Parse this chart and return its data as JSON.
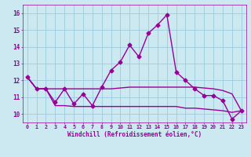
{
  "background_color": "#cce8f0",
  "grid_color": "#99ccdd",
  "line_color": "#990099",
  "xlim": [
    -0.5,
    23.5
  ],
  "ylim": [
    9.5,
    16.5
  ],
  "yticks": [
    10,
    11,
    12,
    13,
    14,
    15,
    16
  ],
  "xticks": [
    0,
    1,
    2,
    3,
    4,
    5,
    6,
    7,
    8,
    9,
    10,
    11,
    12,
    13,
    14,
    15,
    16,
    17,
    18,
    19,
    20,
    21,
    22,
    23
  ],
  "xlabel": "Windchill (Refroidissement éolien,°C)",
  "series_main": [
    12.2,
    11.5,
    11.5,
    10.7,
    11.5,
    10.6,
    11.2,
    10.5,
    11.6,
    12.6,
    13.1,
    14.1,
    13.4,
    14.8,
    15.3,
    15.9,
    12.5,
    12.0,
    11.5,
    11.1,
    11.1,
    10.8,
    9.7,
    10.2
  ],
  "series_upper": [
    12.2,
    11.5,
    11.5,
    11.5,
    11.5,
    11.5,
    11.5,
    11.5,
    11.5,
    11.5,
    11.55,
    11.6,
    11.6,
    11.6,
    11.6,
    11.6,
    11.6,
    11.6,
    11.6,
    11.55,
    11.5,
    11.4,
    11.2,
    10.2
  ],
  "series_lower": [
    12.2,
    11.5,
    11.5,
    10.5,
    10.5,
    10.45,
    10.45,
    10.45,
    10.45,
    10.45,
    10.45,
    10.45,
    10.45,
    10.45,
    10.45,
    10.45,
    10.45,
    10.35,
    10.35,
    10.3,
    10.25,
    10.2,
    10.1,
    10.2
  ]
}
